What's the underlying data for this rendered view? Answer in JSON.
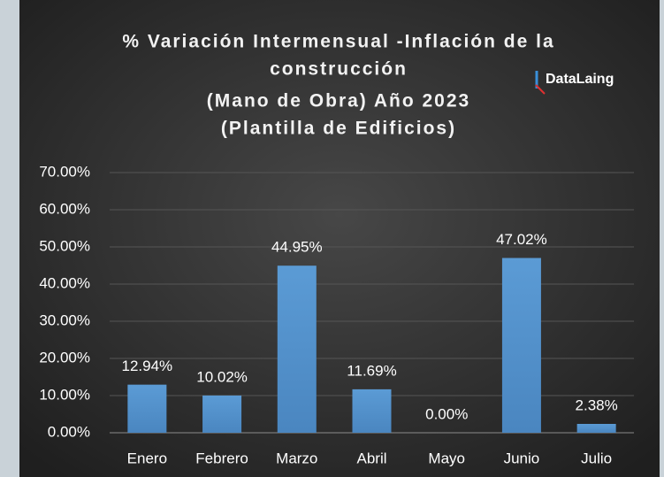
{
  "chart_data": {
    "type": "bar",
    "title": [
      "% Variación Intermensual -Inflación de la",
      "construcción",
      "(Mano de Obra) Año 2023",
      "(Plantilla de Edificios)"
    ],
    "logo": "DataLaing",
    "categories": [
      "Enero",
      "Febrero",
      "Marzo",
      "Abril",
      "Mayo",
      "Junio",
      "Julio"
    ],
    "values": [
      12.94,
      10.02,
      44.95,
      11.69,
      0.0,
      47.02,
      2.38
    ],
    "value_labels": [
      "12.94%",
      "10.02%",
      "44.95%",
      "11.69%",
      "0.00%",
      "47.02%",
      "2.38%"
    ],
    "color": "#5b9bd5",
    "ylim": [
      0,
      70
    ],
    "yticks": [
      {
        "value": 0,
        "label": "0.00%"
      },
      {
        "value": 10,
        "label": "10.00%"
      },
      {
        "value": 20,
        "label": "20.00%"
      },
      {
        "value": 30,
        "label": "30.00%"
      },
      {
        "value": 40,
        "label": "40.00%"
      },
      {
        "value": 50,
        "label": "50.00%"
      },
      {
        "value": 60,
        "label": "60.00%"
      },
      {
        "value": 70,
        "label": "70.00%"
      }
    ],
    "grid": true
  }
}
